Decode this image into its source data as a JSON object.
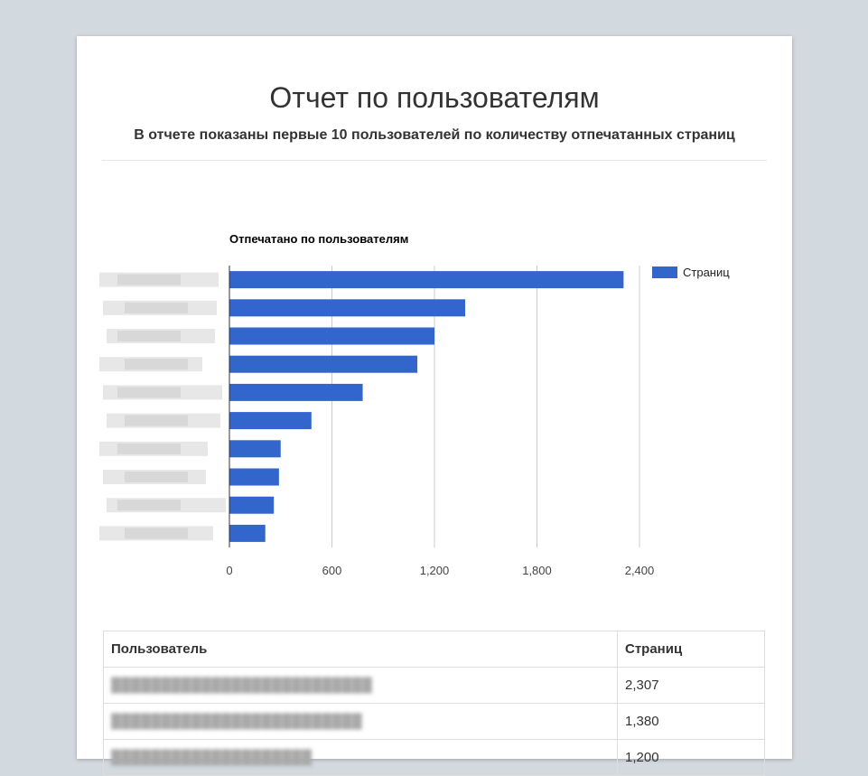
{
  "report": {
    "title": "Отчет по пользователям",
    "subtitle": "В отчете показаны первые 10 пользователей по количеству отпечатанных страниц"
  },
  "chart_data": {
    "type": "bar",
    "orientation": "horizontal",
    "title": "Отпечатано по пользователям",
    "categories": [
      "",
      "",
      "",
      "",
      "",
      "",
      "",
      "",
      "",
      ""
    ],
    "series": [
      {
        "name": "Страниц",
        "color": "#3366cc",
        "values": [
          2307,
          1380,
          1200,
          1100,
          780,
          480,
          300,
          290,
          260,
          210
        ]
      }
    ],
    "xlim": [
      0,
      2400
    ],
    "xticks": [
      "0",
      "600",
      "1,200",
      "1,800",
      "2,400"
    ],
    "grid": true,
    "legend": "right"
  },
  "table": {
    "headers": [
      "Пользователь",
      "Страниц"
    ],
    "rows": [
      {
        "user": "██████████████████████████",
        "pages": "2,307"
      },
      {
        "user": "█████████████████████████",
        "pages": "1,380"
      },
      {
        "user": "████████████████████",
        "pages": "1,200"
      }
    ]
  }
}
